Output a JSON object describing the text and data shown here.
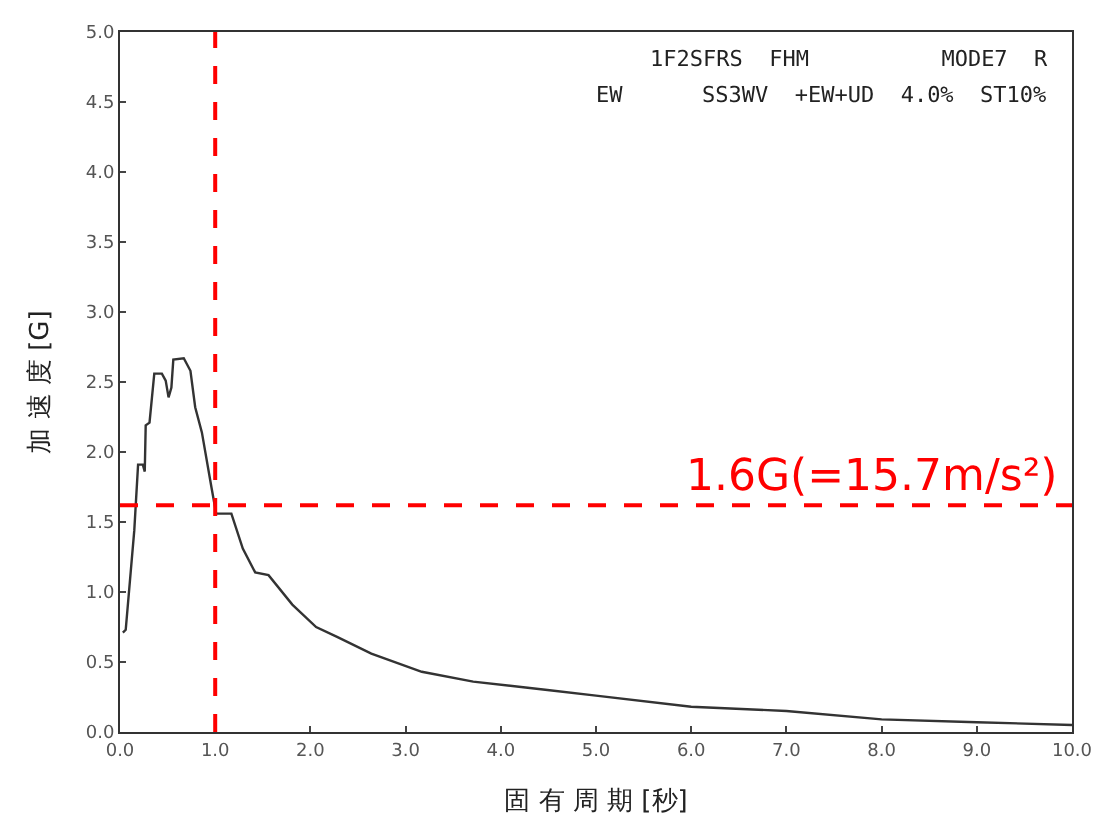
{
  "chart_data": {
    "type": "line",
    "xlabel": "固 有 周 期 [秒]",
    "ylabel": "加 速 度 [G]",
    "annotations": [
      "1F2SFRS  FHM          MODE7  R",
      "EW      SS3WV  +EW+UD  4.0%  ST10%"
    ],
    "x": [
      0.03,
      0.06,
      0.15,
      0.19,
      0.24,
      0.26,
      0.27,
      0.31,
      0.36,
      0.44,
      0.48,
      0.51,
      0.54,
      0.56,
      0.67,
      0.74,
      0.79,
      0.86,
      0.96,
      1.01,
      1.17,
      1.29,
      1.42,
      1.56,
      1.81,
      2.06,
      2.28,
      2.64,
      3.17,
      3.71,
      4.49,
      5.0,
      6.0,
      7.0,
      8.0,
      9.0,
      10.0
    ],
    "series": [
      {
        "color": "#333333",
        "values": [
          0.71,
          0.73,
          1.44,
          1.91,
          1.91,
          1.86,
          2.19,
          2.21,
          2.56,
          2.56,
          2.51,
          2.39,
          2.46,
          2.66,
          2.67,
          2.58,
          2.32,
          2.14,
          1.75,
          1.56,
          1.56,
          1.31,
          1.14,
          1.12,
          0.91,
          0.75,
          0.68,
          0.56,
          0.43,
          0.36,
          0.3,
          0.26,
          0.18,
          0.15,
          0.09,
          0.07,
          0.05
        ]
      }
    ],
    "xlim": [
      0,
      10
    ],
    "ylim": [
      0,
      5
    ],
    "xticks": [
      {
        "value": 0,
        "label": "0.0"
      },
      {
        "value": 1,
        "label": "1.0"
      },
      {
        "value": 2,
        "label": "2.0"
      },
      {
        "value": 3,
        "label": "3.0"
      },
      {
        "value": 4,
        "label": "4.0"
      },
      {
        "value": 5,
        "label": "5.0"
      },
      {
        "value": 6,
        "label": "6.0"
      },
      {
        "value": 7,
        "label": "7.0"
      },
      {
        "value": 8,
        "label": "8.0"
      },
      {
        "value": 9,
        "label": "9.0"
      },
      {
        "value": 10,
        "label": "10.0"
      }
    ],
    "yticks": [
      {
        "value": 0,
        "label": "0.0"
      },
      {
        "value": 0.5,
        "label": "0.5"
      },
      {
        "value": 1,
        "label": "1.0"
      },
      {
        "value": 1.5,
        "label": "1.5"
      },
      {
        "value": 2,
        "label": "2.0"
      },
      {
        "value": 2.5,
        "label": "2.5"
      },
      {
        "value": 3,
        "label": "3.0"
      },
      {
        "value": 3.5,
        "label": "3.5"
      },
      {
        "value": 4,
        "label": "4.0"
      },
      {
        "value": 4.5,
        "label": "4.5"
      },
      {
        "value": 5,
        "label": "5.0"
      }
    ],
    "ref_lines": [
      {
        "axis": "x",
        "value": 1.0,
        "color": "#ff0000",
        "line_style": "dashed"
      },
      {
        "axis": "y",
        "value": 1.62,
        "label": "1.6G(=15.7m/s²)",
        "color": "#ff0000",
        "line_style": "dashed"
      }
    ],
    "marker": "none",
    "line_style": "solid"
  }
}
